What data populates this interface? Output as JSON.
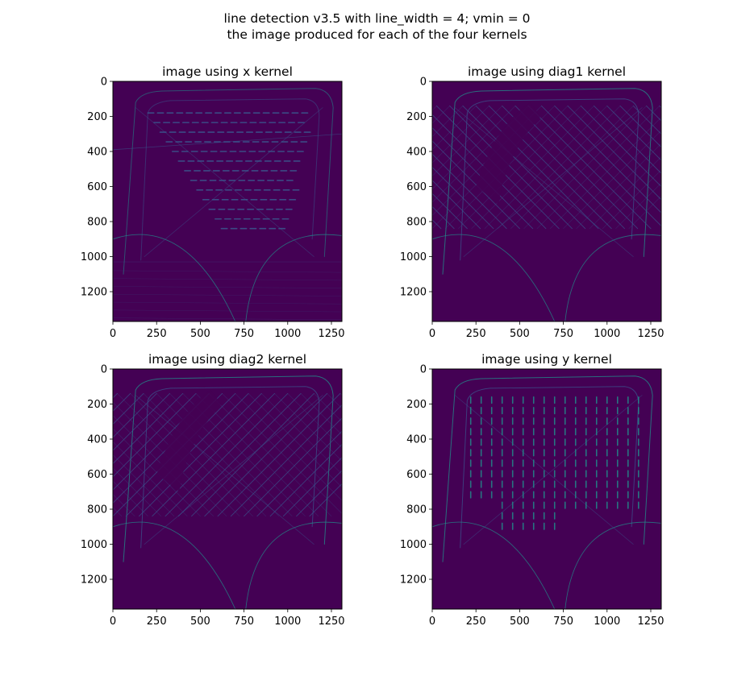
{
  "figure": {
    "suptitle_line1": "line detection v3.5 with line_width = 4; vmin = 0",
    "suptitle_line2": "the image produced for each of the four kernels"
  },
  "colors": {
    "background_min": "#440154",
    "line_low": "#3b528b",
    "line_mid": "#21918c",
    "frame": "#000000"
  },
  "chart_data": [
    {
      "type": "heatmap",
      "title": "image using x kernel",
      "xlim": [
        0,
        1310
      ],
      "ylim": [
        1370,
        0
      ],
      "xticks": [
        0,
        250,
        500,
        750,
        1000,
        1250
      ],
      "yticks": [
        0,
        200,
        400,
        600,
        800,
        1000,
        1200
      ],
      "colormap": "viridis",
      "vmin": 0,
      "grid": false,
      "dominant_feature": "horizontal strokes"
    },
    {
      "type": "heatmap",
      "title": "image using diag1 kernel",
      "xlim": [
        0,
        1310
      ],
      "ylim": [
        1370,
        0
      ],
      "xticks": [
        0,
        250,
        500,
        750,
        1000,
        1250
      ],
      "yticks": [
        0,
        200,
        400,
        600,
        800,
        1000,
        1200
      ],
      "colormap": "viridis",
      "vmin": 0,
      "grid": false,
      "dominant_feature": "diagonal strokes (down-right)"
    },
    {
      "type": "heatmap",
      "title": "image using diag2 kernel",
      "xlim": [
        0,
        1310
      ],
      "ylim": [
        1370,
        0
      ],
      "xticks": [
        0,
        250,
        500,
        750,
        1000,
        1250
      ],
      "yticks": [
        0,
        200,
        400,
        600,
        800,
        1000,
        1200
      ],
      "colormap": "viridis",
      "vmin": 0,
      "grid": false,
      "dominant_feature": "diagonal strokes (up-right)"
    },
    {
      "type": "heatmap",
      "title": "image using y kernel",
      "xlim": [
        0,
        1310
      ],
      "ylim": [
        1370,
        0
      ],
      "xticks": [
        0,
        250,
        500,
        750,
        1000,
        1250
      ],
      "yticks": [
        0,
        200,
        400,
        600,
        800,
        1000,
        1200
      ],
      "colormap": "viridis",
      "vmin": 0,
      "grid": false,
      "dominant_feature": "vertical strokes"
    }
  ]
}
